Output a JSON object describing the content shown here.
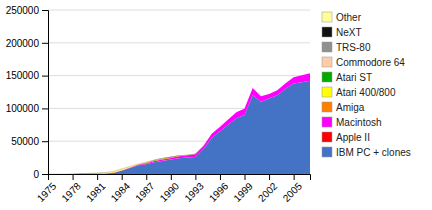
{
  "chart_data": {
    "type": "area",
    "stacked": true,
    "x": [
      1975,
      1976,
      1977,
      1978,
      1979,
      1980,
      1981,
      1982,
      1983,
      1984,
      1985,
      1986,
      1987,
      1988,
      1989,
      1990,
      1991,
      1992,
      1993,
      1994,
      1995,
      1996,
      1997,
      1998,
      1999,
      2000,
      2001,
      2002,
      2003,
      2004,
      2005,
      2006,
      2007
    ],
    "series": [
      {
        "name": "IBM PC + clones",
        "color": "#4472C4",
        "values": [
          0,
          0,
          0,
          0,
          0,
          0,
          150,
          400,
          1500,
          5000,
          9000,
          13000,
          15000,
          18000,
          20000,
          22000,
          24000,
          25000,
          26000,
          38000,
          55000,
          65000,
          75000,
          85000,
          90000,
          120000,
          110000,
          115000,
          120000,
          130000,
          138000,
          140000,
          142000
        ]
      },
      {
        "name": "Apple II",
        "color": "#FF0000",
        "values": [
          0,
          0,
          10,
          30,
          80,
          150,
          200,
          300,
          400,
          300,
          200,
          150,
          100,
          70,
          50,
          30,
          15,
          8,
          4,
          2,
          1,
          0,
          0,
          0,
          0,
          0,
          0,
          0,
          0,
          0,
          0,
          0,
          0
        ]
      },
      {
        "name": "Macintosh",
        "color": "#FF00FF",
        "values": [
          0,
          0,
          0,
          0,
          0,
          0,
          0,
          0,
          0,
          200,
          500,
          800,
          1200,
          1600,
          2000,
          2500,
          3000,
          3500,
          4000,
          4500,
          6000,
          7000,
          8000,
          9000,
          10000,
          11000,
          8500,
          7000,
          7500,
          8500,
          9500,
          10500,
          11500
        ]
      },
      {
        "name": "Amiga",
        "color": "#FF8000",
        "values": [
          0,
          0,
          0,
          0,
          0,
          0,
          0,
          0,
          0,
          0,
          150,
          400,
          700,
          900,
          1100,
          900,
          700,
          500,
          350,
          180,
          90,
          40,
          15,
          8,
          4,
          0,
          0,
          0,
          0,
          0,
          0,
          0,
          0
        ]
      },
      {
        "name": "Atari 400/800",
        "color": "#FFFF00",
        "values": [
          0,
          0,
          0,
          0,
          40,
          150,
          350,
          500,
          600,
          450,
          250,
          150,
          80,
          40,
          15,
          8,
          4,
          2,
          1,
          0,
          0,
          0,
          0,
          0,
          0,
          0,
          0,
          0,
          0,
          0,
          0,
          0,
          0
        ]
      },
      {
        "name": "Atari ST",
        "color": "#00AA00",
        "values": [
          0,
          0,
          0,
          0,
          0,
          0,
          0,
          0,
          0,
          0,
          80,
          250,
          500,
          700,
          600,
          450,
          250,
          150,
          80,
          40,
          15,
          8,
          4,
          2,
          1,
          0,
          0,
          0,
          0,
          0,
          0,
          0,
          0
        ]
      },
      {
        "name": "Commodore 64",
        "color": "#FFCCAA",
        "values": [
          0,
          0,
          0,
          0,
          0,
          80,
          250,
          700,
          1800,
          2200,
          1800,
          1300,
          900,
          600,
          350,
          150,
          80,
          40,
          15,
          8,
          4,
          2,
          1,
          0,
          0,
          0,
          0,
          0,
          0,
          0,
          0,
          0,
          0
        ]
      },
      {
        "name": "TRS-80",
        "color": "#909090",
        "values": [
          0,
          40,
          150,
          500,
          900,
          1100,
          900,
          700,
          450,
          250,
          120,
          60,
          25,
          8,
          4,
          2,
          1,
          0,
          0,
          0,
          0,
          0,
          0,
          0,
          0,
          0,
          0,
          0,
          0,
          0,
          0,
          0,
          0
        ]
      },
      {
        "name": "NeXT",
        "color": "#111111",
        "values": [
          0,
          0,
          0,
          0,
          0,
          0,
          0,
          0,
          0,
          0,
          0,
          0,
          0,
          80,
          160,
          250,
          350,
          300,
          250,
          160,
          80,
          40,
          8,
          4,
          2,
          0,
          0,
          0,
          0,
          0,
          0,
          0,
          0
        ]
      },
      {
        "name": "Other",
        "color": "#FFFF99",
        "values": [
          10,
          30,
          60,
          100,
          180,
          260,
          350,
          430,
          520,
          550,
          460,
          370,
          280,
          230,
          190,
          190,
          190,
          190,
          190,
          190,
          190,
          190,
          140,
          90,
          90,
          90,
          90,
          90,
          90,
          90,
          90,
          90,
          90
        ]
      }
    ],
    "xlim": [
      1975,
      2007
    ],
    "xticks": [
      1975,
      1978,
      1981,
      1984,
      1987,
      1990,
      1993,
      1996,
      1999,
      2002,
      2005
    ],
    "ylim": [
      0,
      250000
    ],
    "yticks": [
      0,
      50000,
      100000,
      150000,
      200000,
      250000
    ],
    "grid": true,
    "legend": "right"
  }
}
